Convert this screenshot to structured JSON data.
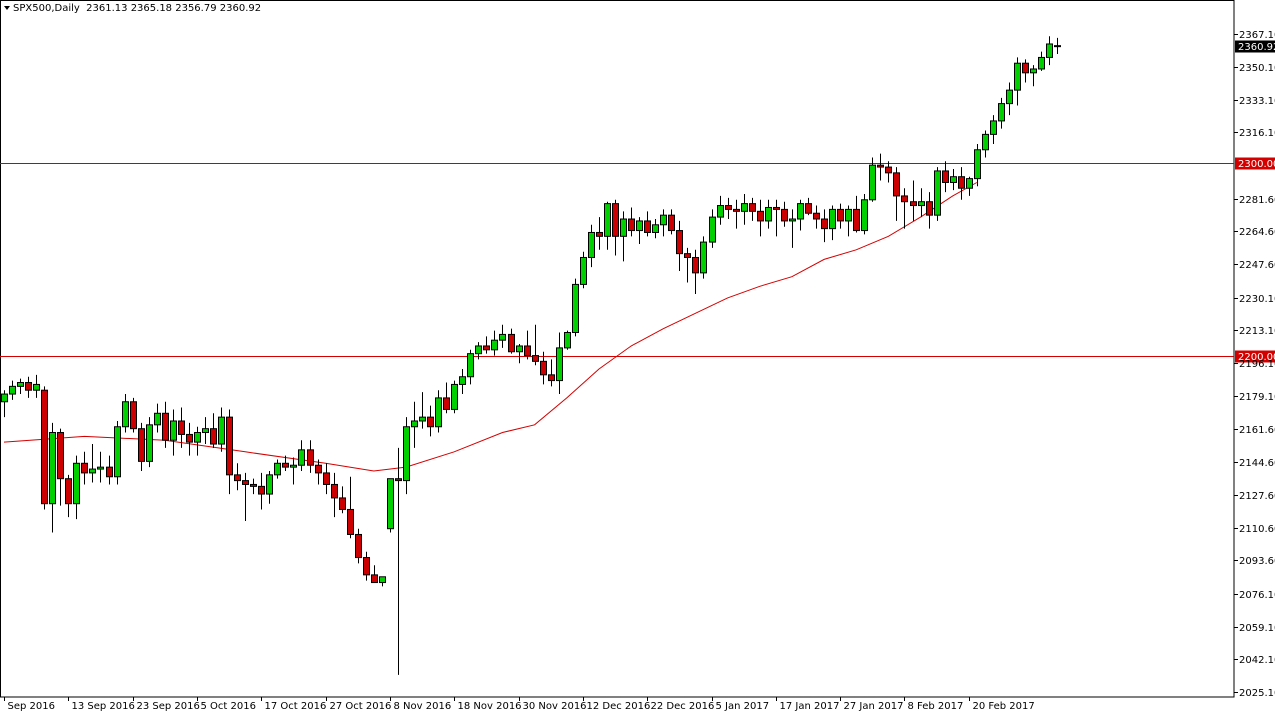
{
  "header": {
    "symbol": "SPX500,Daily",
    "ohlc": "2361.13 2365.18 2356.79 2360.92"
  },
  "chart_data": {
    "type": "candlestick",
    "title": "SPX500,Daily",
    "ylim": [
      2019,
      2377
    ],
    "y_ticks": [
      "2367.10",
      "2350.10",
      "2333.10",
      "2316.10",
      "2281.60",
      "2264.60",
      "2247.60",
      "2230.10",
      "2213.10",
      "2196.10",
      "2179.10",
      "2161.60",
      "2144.60",
      "2127.60",
      "2110.60",
      "2093.60",
      "2076.10",
      "2059.10",
      "2042.10",
      "2025.10"
    ],
    "x_ticks": [
      {
        "label": "Sep 2016",
        "index": 0
      },
      {
        "label": "13 Sep 2016",
        "index": 8
      },
      {
        "label": "23 Sep 2016",
        "index": 16
      },
      {
        "label": "5 Oct 2016",
        "index": 24
      },
      {
        "label": "17 Oct 2016",
        "index": 32
      },
      {
        "label": "27 Oct 2016",
        "index": 40
      },
      {
        "label": "8 Nov 2016",
        "index": 48
      },
      {
        "label": "18 Nov 2016",
        "index": 56
      },
      {
        "label": "30 Nov 2016",
        "index": 64
      },
      {
        "label": "12 Dec 2016",
        "index": 72
      },
      {
        "label": "22 Dec 2016",
        "index": 80
      },
      {
        "label": "5 Jan 2017",
        "index": 88
      },
      {
        "label": "17 Jan 2017",
        "index": 96
      },
      {
        "label": "27 Jan 2017",
        "index": 104
      },
      {
        "label": "8 Feb 2017",
        "index": 112
      },
      {
        "label": "20 Feb 2017",
        "index": 120
      }
    ],
    "levels": [
      {
        "value": 2300.0,
        "label": "2300.00",
        "color": "#d40000"
      },
      {
        "value": 2200.0,
        "label": "2200.00",
        "color": "#d40000"
      }
    ],
    "current_price": {
      "value": 2360.92,
      "label": "2360.92"
    },
    "colors": {
      "up": "#00d000",
      "down": "#cc0000",
      "wick": "#000000",
      "ma": "#d40000",
      "level": "#d40000"
    },
    "candles": [
      [
        2176,
        2182,
        2168,
        2180
      ],
      [
        2180,
        2187,
        2177,
        2184
      ],
      [
        2184,
        2188,
        2180,
        2186
      ],
      [
        2186,
        2189,
        2178,
        2182
      ],
      [
        2182,
        2190,
        2178,
        2185
      ],
      [
        2182,
        2184,
        2120,
        2123
      ],
      [
        2123,
        2165,
        2108,
        2160
      ],
      [
        2160,
        2162,
        2122,
        2136
      ],
      [
        2136,
        2138,
        2116,
        2123
      ],
      [
        2123,
        2148,
        2115,
        2144
      ],
      [
        2144,
        2150,
        2133,
        2139
      ],
      [
        2139,
        2154,
        2134,
        2141
      ],
      [
        2141,
        2150,
        2134,
        2142
      ],
      [
        2142,
        2148,
        2133,
        2137
      ],
      [
        2137,
        2166,
        2133,
        2163
      ],
      [
        2163,
        2180,
        2160,
        2176
      ],
      [
        2176,
        2178,
        2160,
        2162
      ],
      [
        2162,
        2165,
        2140,
        2145
      ],
      [
        2145,
        2168,
        2142,
        2164
      ],
      [
        2164,
        2175,
        2160,
        2170
      ],
      [
        2170,
        2176,
        2152,
        2156
      ],
      [
        2156,
        2172,
        2148,
        2166
      ],
      [
        2166,
        2173,
        2152,
        2159
      ],
      [
        2159,
        2165,
        2148,
        2155
      ],
      [
        2155,
        2163,
        2148,
        2160
      ],
      [
        2160,
        2168,
        2154,
        2162
      ],
      [
        2162,
        2170,
        2152,
        2154
      ],
      [
        2154,
        2173,
        2150,
        2168
      ],
      [
        2168,
        2172,
        2128,
        2138
      ],
      [
        2138,
        2144,
        2130,
        2135
      ],
      [
        2135,
        2139,
        2114,
        2133
      ],
      [
        2133,
        2136,
        2128,
        2132
      ],
      [
        2132,
        2139,
        2120,
        2128
      ],
      [
        2128,
        2140,
        2123,
        2138
      ],
      [
        2138,
        2146,
        2136,
        2144
      ],
      [
        2144,
        2148,
        2140,
        2142
      ],
      [
        2142,
        2147,
        2133,
        2143
      ],
      [
        2143,
        2156,
        2140,
        2151
      ],
      [
        2151,
        2156,
        2139,
        2143
      ],
      [
        2143,
        2146,
        2133,
        2139
      ],
      [
        2139,
        2144,
        2128,
        2133
      ],
      [
        2133,
        2139,
        2116,
        2126
      ],
      [
        2126,
        2132,
        2118,
        2120
      ],
      [
        2120,
        2137,
        2105,
        2107
      ],
      [
        2107,
        2110,
        2092,
        2095
      ],
      [
        2095,
        2098,
        2083,
        2086
      ],
      [
        2086,
        2091,
        2082,
        2082
      ],
      [
        2082,
        2085,
        2080,
        2085
      ],
      [
        2110,
        2133,
        2108,
        2136
      ],
      [
        2136,
        2152,
        2034,
        2135
      ],
      [
        2135,
        2168,
        2128,
        2163
      ],
      [
        2163,
        2176,
        2152,
        2166
      ],
      [
        2166,
        2181,
        2162,
        2168
      ],
      [
        2168,
        2174,
        2158,
        2163
      ],
      [
        2163,
        2182,
        2160,
        2178
      ],
      [
        2178,
        2186,
        2170,
        2172
      ],
      [
        2172,
        2187,
        2170,
        2185
      ],
      [
        2185,
        2193,
        2180,
        2189
      ],
      [
        2189,
        2203,
        2185,
        2201
      ],
      [
        2201,
        2207,
        2198,
        2205
      ],
      [
        2205,
        2210,
        2201,
        2203
      ],
      [
        2203,
        2213,
        2200,
        2208
      ],
      [
        2208,
        2216,
        2204,
        2211
      ],
      [
        2211,
        2214,
        2201,
        2202
      ],
      [
        2202,
        2206,
        2196,
        2205
      ],
      [
        2205,
        2213,
        2198,
        2200
      ],
      [
        2200,
        2216,
        2195,
        2197
      ],
      [
        2197,
        2202,
        2185,
        2190
      ],
      [
        2190,
        2198,
        2184,
        2187
      ],
      [
        2187,
        2212,
        2180,
        2204
      ],
      [
        2204,
        2213,
        2203,
        2212
      ],
      [
        2212,
        2240,
        2210,
        2237
      ],
      [
        2237,
        2254,
        2235,
        2251
      ],
      [
        2251,
        2268,
        2246,
        2264
      ],
      [
        2264,
        2272,
        2255,
        2262
      ],
      [
        2262,
        2280,
        2255,
        2279
      ],
      [
        2279,
        2281,
        2252,
        2262
      ],
      [
        2262,
        2275,
        2249,
        2271
      ],
      [
        2271,
        2277,
        2262,
        2265
      ],
      [
        2265,
        2272,
        2258,
        2270
      ],
      [
        2270,
        2275,
        2262,
        2264
      ],
      [
        2264,
        2271,
        2261,
        2268
      ],
      [
        2268,
        2276,
        2262,
        2273
      ],
      [
        2273,
        2276,
        2263,
        2265
      ],
      [
        2265,
        2270,
        2244,
        2253
      ],
      [
        2253,
        2256,
        2238,
        2251
      ],
      [
        2251,
        2255,
        2232,
        2243
      ],
      [
        2243,
        2262,
        2240,
        2259
      ],
      [
        2259,
        2276,
        2256,
        2272
      ],
      [
        2272,
        2283,
        2268,
        2278
      ],
      [
        2278,
        2282,
        2271,
        2276
      ],
      [
        2276,
        2281,
        2266,
        2275
      ],
      [
        2275,
        2284,
        2268,
        2279
      ],
      [
        2279,
        2282,
        2270,
        2275
      ],
      [
        2275,
        2281,
        2262,
        2270
      ],
      [
        2270,
        2281,
        2266,
        2277
      ],
      [
        2277,
        2281,
        2262,
        2276
      ],
      [
        2276,
        2280,
        2267,
        2270
      ],
      [
        2270,
        2276,
        2256,
        2271
      ],
      [
        2271,
        2281,
        2265,
        2279
      ],
      [
        2279,
        2282,
        2273,
        2274
      ],
      [
        2274,
        2278,
        2266,
        2271
      ],
      [
        2271,
        2276,
        2259,
        2266
      ],
      [
        2266,
        2278,
        2260,
        2276
      ],
      [
        2276,
        2279,
        2266,
        2270
      ],
      [
        2270,
        2278,
        2262,
        2276
      ],
      [
        2276,
        2283,
        2264,
        2265
      ],
      [
        2265,
        2284,
        2263,
        2281
      ],
      [
        2281,
        2303,
        2280,
        2299
      ],
      [
        2299,
        2305,
        2291,
        2298
      ],
      [
        2298,
        2301,
        2290,
        2295
      ],
      [
        2295,
        2298,
        2270,
        2283
      ],
      [
        2283,
        2287,
        2266,
        2280
      ],
      [
        2280,
        2291,
        2270,
        2278
      ],
      [
        2278,
        2287,
        2272,
        2280
      ],
      [
        2280,
        2285,
        2266,
        2273
      ],
      [
        2273,
        2298,
        2270,
        2296
      ],
      [
        2296,
        2301,
        2285,
        2290
      ],
      [
        2290,
        2297,
        2286,
        2293
      ],
      [
        2293,
        2298,
        2281,
        2287
      ],
      [
        2287,
        2293,
        2283,
        2292
      ],
      [
        2292,
        2310,
        2288,
        2307
      ],
      [
        2307,
        2317,
        2303,
        2315
      ],
      [
        2315,
        2325,
        2310,
        2322
      ],
      [
        2322,
        2334,
        2318,
        2331
      ],
      [
        2331,
        2342,
        2325,
        2338
      ],
      [
        2338,
        2355,
        2330,
        2352
      ],
      [
        2352,
        2354,
        2342,
        2347
      ],
      [
        2347,
        2351,
        2340,
        2349
      ],
      [
        2349,
        2358,
        2348,
        2355
      ],
      [
        2355,
        2366,
        2351,
        2362
      ],
      [
        2361.13,
        2365.18,
        2356.79,
        2360.92
      ]
    ],
    "moving_average": [
      [
        0,
        2155
      ],
      [
        10,
        2158
      ],
      [
        20,
        2156
      ],
      [
        30,
        2150
      ],
      [
        40,
        2144
      ],
      [
        46,
        2140
      ],
      [
        50,
        2142
      ],
      [
        56,
        2150
      ],
      [
        62,
        2160
      ],
      [
        66,
        2164
      ],
      [
        70,
        2178
      ],
      [
        74,
        2193
      ],
      [
        78,
        2205
      ],
      [
        82,
        2214
      ],
      [
        86,
        2222
      ],
      [
        90,
        2230
      ],
      [
        94,
        2236
      ],
      [
        98,
        2241
      ],
      [
        102,
        2250
      ],
      [
        106,
        2255
      ],
      [
        110,
        2262
      ],
      [
        114,
        2272
      ],
      [
        118,
        2283
      ],
      [
        121,
        2290
      ]
    ]
  }
}
